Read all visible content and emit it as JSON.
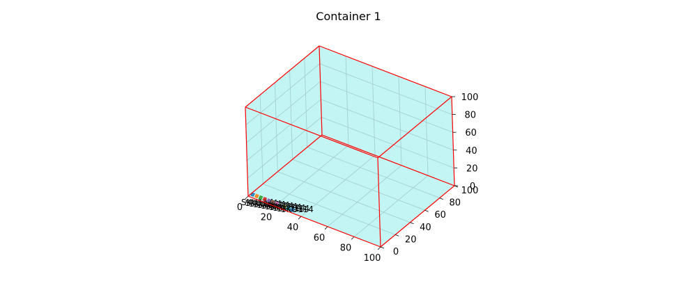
{
  "chart_data": {
    "type": "scatter",
    "title": "Container 1",
    "xlabel": "",
    "ylabel": "",
    "zlabel": "",
    "xlim": [
      0,
      100
    ],
    "ylim": [
      0,
      100
    ],
    "zlim": [
      0,
      100
    ],
    "x_ticks": [
      "0",
      "20",
      "40",
      "60",
      "80",
      "100"
    ],
    "y_ticks": [
      "0",
      "20",
      "40",
      "60",
      "80",
      "100"
    ],
    "z_ticks": [
      "0",
      "20",
      "40",
      "60",
      "80",
      "100"
    ],
    "grid": true,
    "pane_color": "#c3f5f5",
    "edge_color": "#ff0000",
    "container_box": {
      "x": [
        0,
        100
      ],
      "y": [
        0,
        100
      ],
      "z": [
        0,
        100
      ]
    },
    "items": [
      {
        "label": "SKU114",
        "x": 1,
        "y": 2,
        "z": 0
      },
      {
        "label": "SKU114",
        "x": 4,
        "y": 2,
        "z": 0
      },
      {
        "label": "SKU114",
        "x": 7,
        "y": 2,
        "z": 0
      },
      {
        "label": "SKU114",
        "x": 10,
        "y": 2,
        "z": 0
      },
      {
        "label": "SKU114",
        "x": 13,
        "y": 2,
        "z": 0
      },
      {
        "label": "SKU114",
        "x": 16,
        "y": 2,
        "z": 0
      },
      {
        "label": "SKU114",
        "x": 19,
        "y": 2,
        "z": 0
      },
      {
        "label": "SKU114",
        "x": 22,
        "y": 2,
        "z": 0
      },
      {
        "label": "SKU114",
        "x": 25,
        "y": 2,
        "z": 0
      },
      {
        "label": "SKU114",
        "x": 28,
        "y": 2,
        "z": 0
      },
      {
        "label": "SKU114",
        "x": 31,
        "y": 2,
        "z": 0
      }
    ],
    "item_colors": [
      "#1f77b4",
      "#ff7f0e",
      "#2ca02c",
      "#d62728",
      "#9467bd",
      "#8c564b",
      "#e377c2",
      "#7f7f7f",
      "#bcbd22",
      "#17becf"
    ]
  }
}
